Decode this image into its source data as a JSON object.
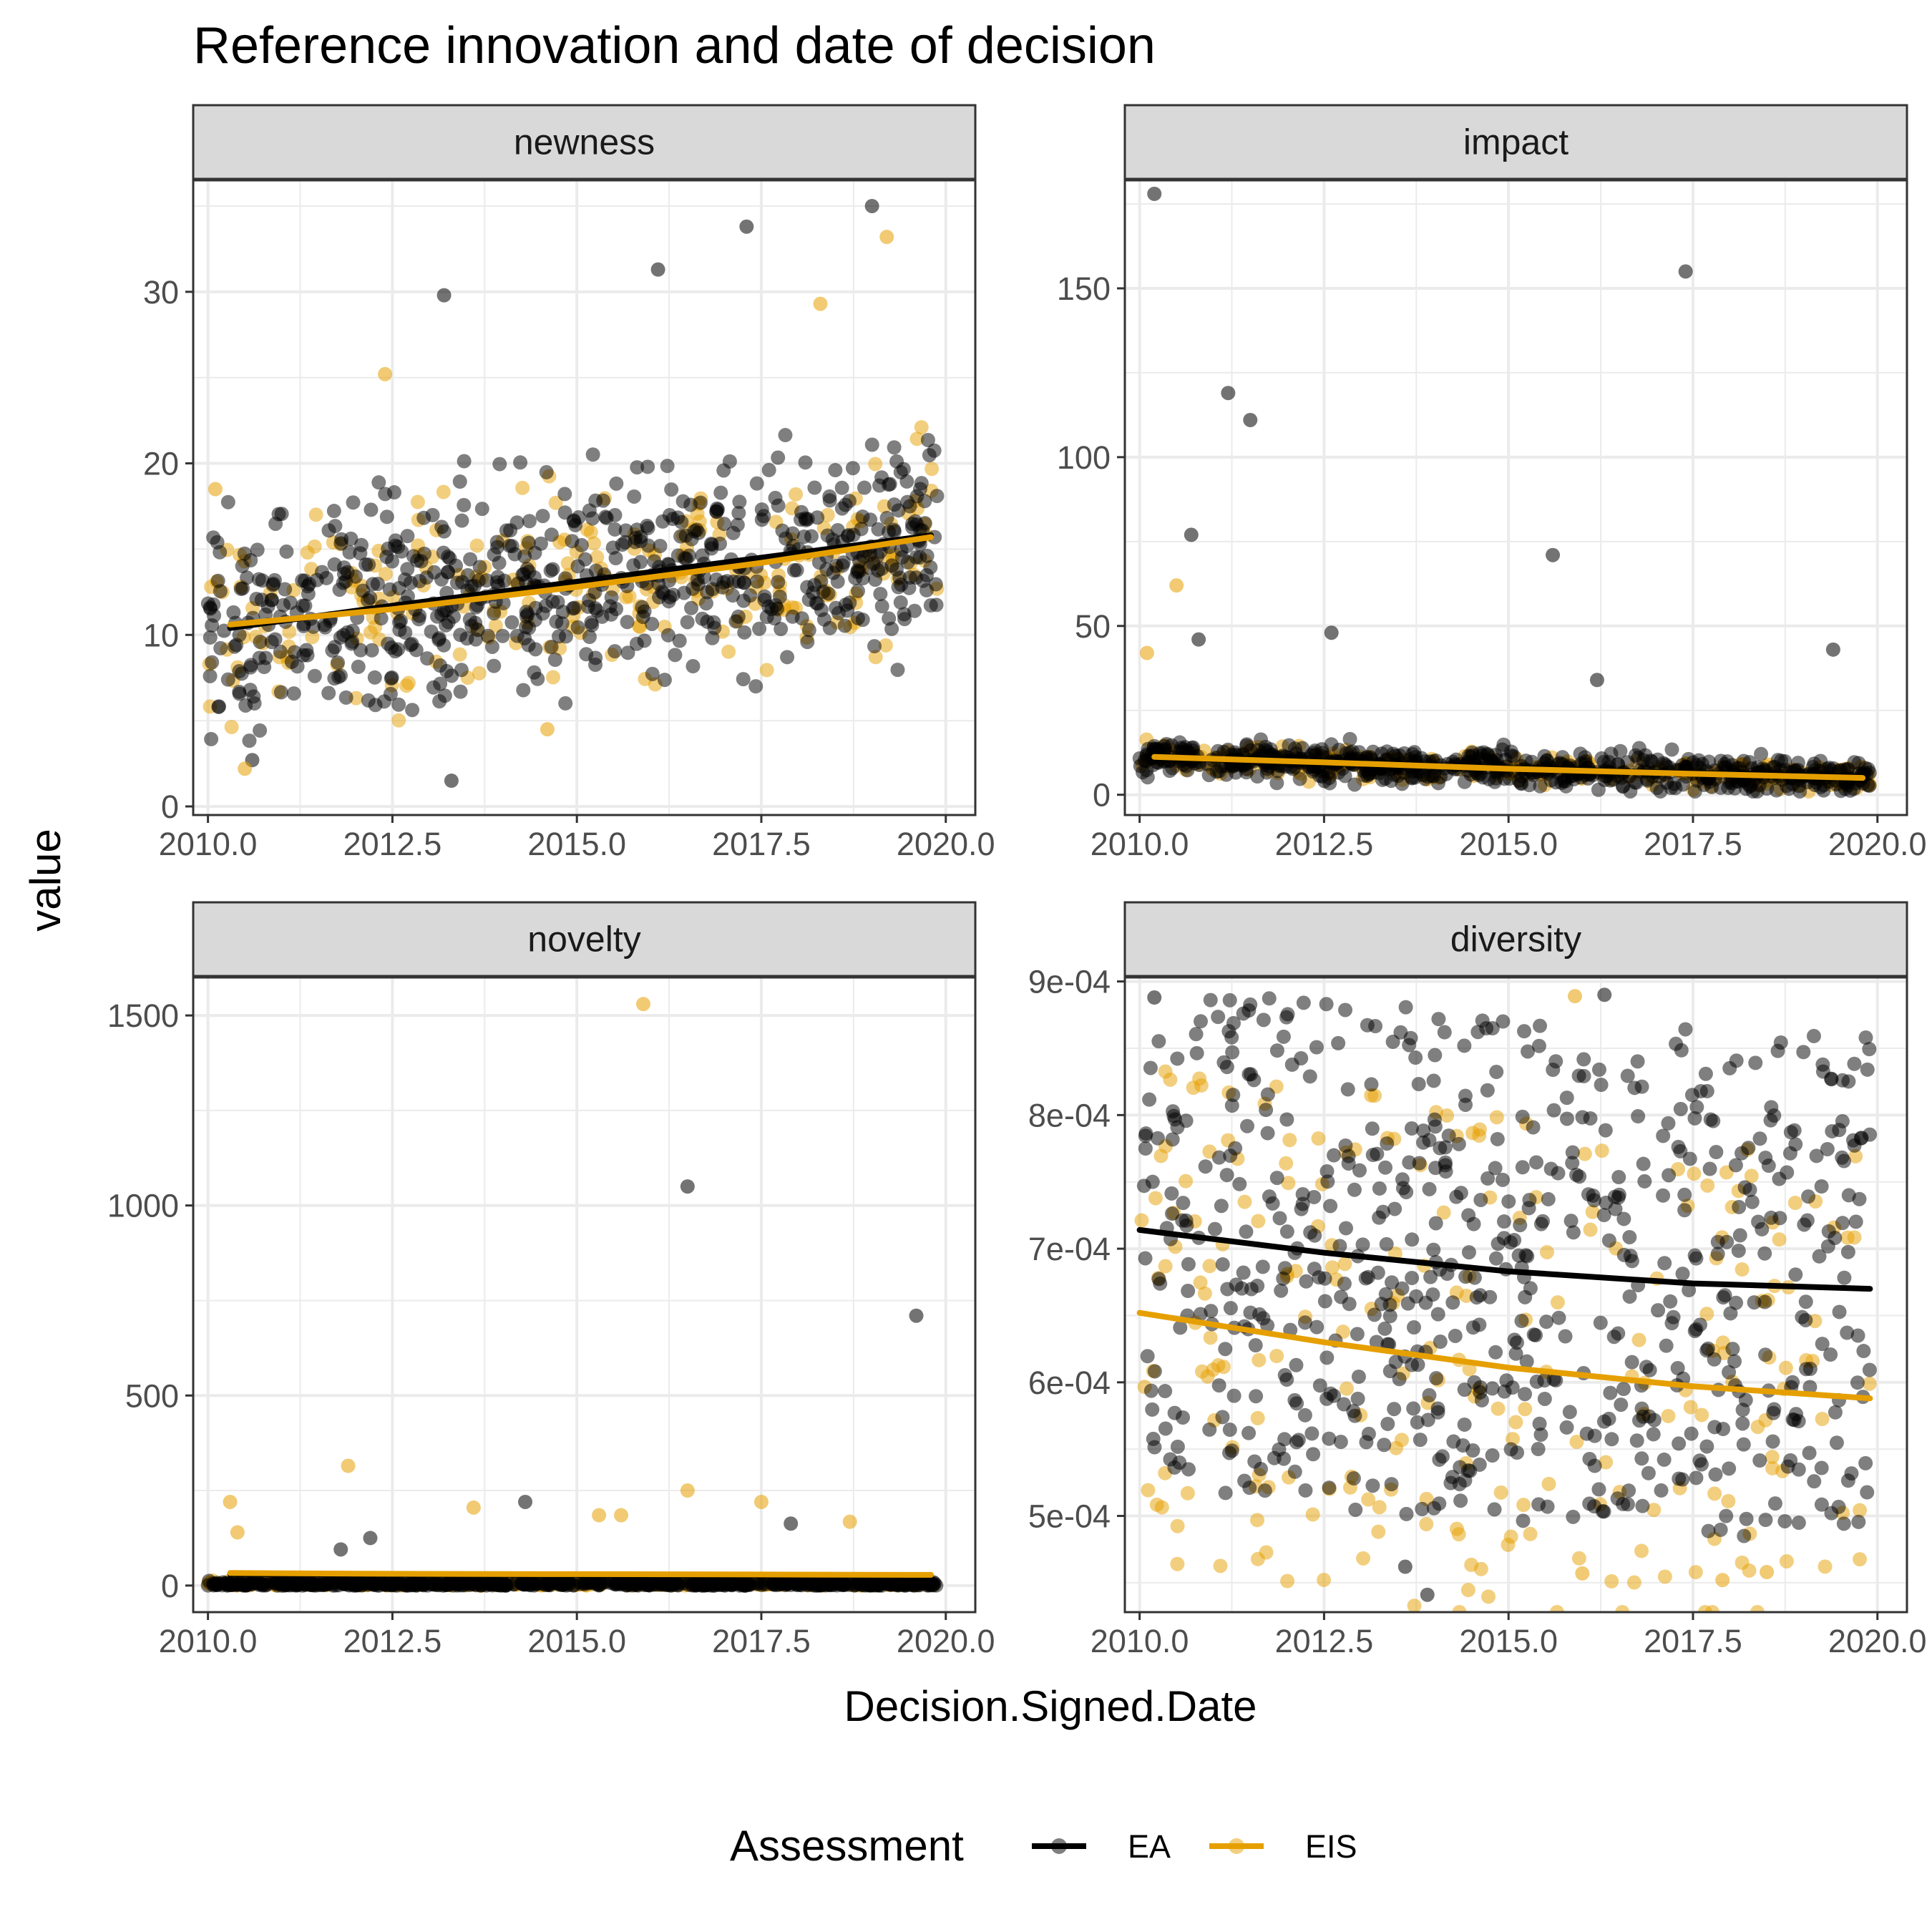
{
  "chart_data": {
    "type": "scatter",
    "title": "Reference innovation and date of decision",
    "xlabel": "Decision.Signed.Date",
    "ylabel": "value",
    "legend": {
      "title": "Assessment",
      "position": "bottom",
      "entries": [
        {
          "name": "EA",
          "color": "#000000"
        },
        {
          "name": "EIS",
          "color": "#E69F00"
        }
      ]
    },
    "grid": true,
    "facets": [
      {
        "name": "newness",
        "xlim": [
          2009.8,
          2020.4
        ],
        "ylim": [
          -0.5,
          36.5
        ],
        "x_ticks": [
          "2010.0",
          "2012.5",
          "2015.0",
          "2017.5",
          "2020.0"
        ],
        "y_ticks": [
          "0",
          "10",
          "20",
          "30"
        ],
        "y_tick_values": [
          0,
          10,
          20,
          30
        ],
        "trend": {
          "EA": [
            [
              2010.3,
              10.4
            ],
            [
              2012.5,
              11.7
            ],
            [
              2015.0,
              13.1
            ],
            [
              2017.5,
              14.5
            ],
            [
              2019.8,
              15.8
            ]
          ],
          "EIS": [
            [
              2010.3,
              10.6
            ],
            [
              2012.5,
              11.5
            ],
            [
              2015.0,
              12.8
            ],
            [
              2017.5,
              14.2
            ],
            [
              2019.8,
              15.7
            ]
          ]
        },
        "highlights": [
          {
            "series": "EA",
            "x": 2010.6,
            "y": 2.7
          },
          {
            "series": "EA",
            "x": 2013.2,
            "y": 29.8
          },
          {
            "series": "EA",
            "x": 2016.1,
            "y": 31.3
          },
          {
            "series": "EA",
            "x": 2019.0,
            "y": 35.0
          },
          {
            "series": "EA",
            "x": 2017.3,
            "y": 33.8
          },
          {
            "series": "EA",
            "x": 2013.3,
            "y": 1.5
          },
          {
            "series": "EIS",
            "x": 2010.5,
            "y": 2.2
          },
          {
            "series": "EIS",
            "x": 2019.2,
            "y": 33.2
          },
          {
            "series": "EIS",
            "x": 2012.4,
            "y": 25.2
          },
          {
            "series": "EIS",
            "x": 2018.3,
            "y": 29.3
          },
          {
            "series": "EIS",
            "x": 2010.1,
            "y": 18.5
          },
          {
            "series": "EIS",
            "x": 2014.6,
            "y": 4.5
          }
        ],
        "cloud": {
          "EA": {
            "mean": 12.5,
            "spread": 4.2
          },
          "EIS": {
            "mean": 12.0,
            "spread": 4.0
          }
        }
      },
      {
        "name": "impact",
        "xlim": [
          2009.8,
          2020.4
        ],
        "ylim": [
          -6,
          182
        ],
        "x_ticks": [
          "2010.0",
          "2012.5",
          "2015.0",
          "2017.5",
          "2020.0"
        ],
        "y_ticks": [
          "0",
          "50",
          "100",
          "150"
        ],
        "y_tick_values": [
          0,
          50,
          100,
          150
        ],
        "trend": {
          "EA": [
            [
              2010.2,
              11.0
            ],
            [
              2012.5,
              9.5
            ],
            [
              2015.0,
              7.8
            ],
            [
              2017.5,
              6.4
            ],
            [
              2019.8,
              5.3
            ]
          ],
          "EIS": [
            [
              2010.2,
              11.2
            ],
            [
              2012.5,
              9.6
            ],
            [
              2015.0,
              7.7
            ],
            [
              2017.5,
              6.2
            ],
            [
              2019.8,
              5.0
            ]
          ]
        },
        "highlights": [
          {
            "series": "EA",
            "x": 2010.2,
            "y": 178
          },
          {
            "series": "EA",
            "x": 2017.4,
            "y": 155
          },
          {
            "series": "EA",
            "x": 2011.2,
            "y": 119
          },
          {
            "series": "EA",
            "x": 2011.5,
            "y": 111
          },
          {
            "series": "EA",
            "x": 2010.7,
            "y": 77
          },
          {
            "series": "EA",
            "x": 2015.6,
            "y": 71
          },
          {
            "series": "EA",
            "x": 2019.4,
            "y": 43
          },
          {
            "series": "EA",
            "x": 2010.8,
            "y": 46
          },
          {
            "series": "EA",
            "x": 2016.2,
            "y": 34
          },
          {
            "series": "EA",
            "x": 2012.6,
            "y": 48
          },
          {
            "series": "EIS",
            "x": 2010.5,
            "y": 62
          },
          {
            "series": "EIS",
            "x": 2010.1,
            "y": 42
          }
        ],
        "cloud": {
          "EA": {
            "mean": 9.0,
            "spread": 5.0
          },
          "EIS": {
            "mean": 9.0,
            "spread": 4.5
          }
        }
      },
      {
        "name": "novelty",
        "xlim": [
          2009.8,
          2020.4
        ],
        "ylim": [
          -70,
          1600
        ],
        "x_ticks": [
          "2010.0",
          "2012.5",
          "2015.0",
          "2017.5",
          "2020.0"
        ],
        "y_ticks": [
          "0",
          "500",
          "1000",
          "1500"
        ],
        "y_tick_values": [
          0,
          500,
          1000,
          1500
        ],
        "trend": {
          "EA": [
            [
              2010.3,
              30
            ],
            [
              2012.5,
              29
            ],
            [
              2015.0,
              28
            ],
            [
              2017.5,
              27
            ],
            [
              2019.8,
              26
            ]
          ],
          "EIS": [
            [
              2010.3,
              33
            ],
            [
              2012.5,
              31
            ],
            [
              2015.0,
              30
            ],
            [
              2017.5,
              29
            ],
            [
              2019.8,
              28
            ]
          ]
        },
        "highlights": [
          {
            "series": "EIS",
            "x": 2015.9,
            "y": 1530
          },
          {
            "series": "EA",
            "x": 2016.5,
            "y": 1050
          },
          {
            "series": "EA",
            "x": 2019.6,
            "y": 710
          },
          {
            "series": "EIS",
            "x": 2011.9,
            "y": 315
          },
          {
            "series": "EIS",
            "x": 2016.5,
            "y": 250
          },
          {
            "series": "EA",
            "x": 2014.3,
            "y": 220
          },
          {
            "series": "EIS",
            "x": 2010.3,
            "y": 220
          },
          {
            "series": "EIS",
            "x": 2017.5,
            "y": 220
          },
          {
            "series": "EIS",
            "x": 2013.6,
            "y": 205
          },
          {
            "series": "EIS",
            "x": 2015.3,
            "y": 185
          },
          {
            "series": "EIS",
            "x": 2015.6,
            "y": 185
          },
          {
            "series": "EIS",
            "x": 2018.7,
            "y": 168
          },
          {
            "series": "EA",
            "x": 2017.9,
            "y": 163
          },
          {
            "series": "EIS",
            "x": 2010.4,
            "y": 140
          },
          {
            "series": "EA",
            "x": 2012.2,
            "y": 125
          },
          {
            "series": "EA",
            "x": 2011.8,
            "y": 95
          }
        ],
        "cloud": {
          "EA": {
            "mean": 12,
            "spread": 14
          },
          "EIS": {
            "mean": 15,
            "spread": 16
          }
        }
      },
      {
        "name": "diversity",
        "xlim": [
          2009.8,
          2020.4
        ],
        "ylim": [
          0.000428,
          0.000903
        ],
        "x_ticks": [
          "2010.0",
          "2012.5",
          "2015.0",
          "2017.5",
          "2020.0"
        ],
        "y_ticks": [
          "5e-04",
          "6e-04",
          "7e-04",
          "8e-04",
          "9e-04"
        ],
        "y_tick_values": [
          0.0005,
          0.0006,
          0.0007,
          0.0008,
          0.0009
        ],
        "trend": {
          "EA": [
            [
              2010.0,
              0.000714
            ],
            [
              2012.5,
              0.000697
            ],
            [
              2015.0,
              0.000683
            ],
            [
              2017.5,
              0.000674
            ],
            [
              2019.9,
              0.00067
            ]
          ],
          "EIS": [
            [
              2010.0,
              0.000652
            ],
            [
              2012.5,
              0.00063
            ],
            [
              2015.0,
              0.000611
            ],
            [
              2017.5,
              0.000597
            ],
            [
              2019.9,
              0.000588
            ]
          ]
        },
        "highlights": [
          {
            "series": "EA",
            "x": 2013.9,
            "y": 0.000441
          },
          {
            "series": "EA",
            "x": 2013.6,
            "y": 0.000462
          },
          {
            "series": "EA",
            "x": 2016.3,
            "y": 0.00089
          },
          {
            "series": "EA",
            "x": 2010.2,
            "y": 0.000888
          },
          {
            "series": "EIS",
            "x": 2017.9,
            "y": 0.000452
          },
          {
            "series": "EIS",
            "x": 2015.9,
            "y": 0.000889
          },
          {
            "series": "EIS",
            "x": 2018.5,
            "y": 0.000458
          },
          {
            "series": "EIS",
            "x": 2016.0,
            "y": 0.000457
          }
        ],
        "cloud": {
          "EA": {
            "mean": 0.000685,
            "spread": 9.5e-05
          },
          "EIS": {
            "mean": 0.000635,
            "spread": 9.5e-05
          }
        }
      }
    ]
  }
}
